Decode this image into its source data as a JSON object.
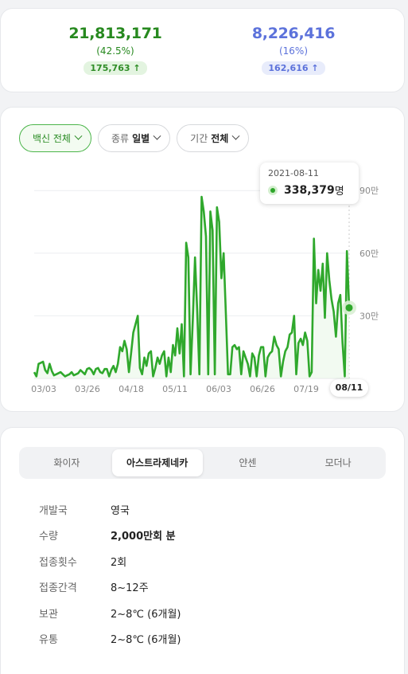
{
  "stats": {
    "first": {
      "value": "21,813,171",
      "percent": "(42.5%)",
      "change": "175,763",
      "arrow": "arrow-up-icon"
    },
    "second": {
      "value": "8,226,416",
      "percent": "(16%)",
      "change": "162,616",
      "arrow": "arrow-up-icon"
    }
  },
  "filters": [
    {
      "label": "백신 전체",
      "value": "",
      "active": true
    },
    {
      "label": "종류",
      "value": "일별",
      "active": false
    },
    {
      "label": "기간",
      "value": "전체",
      "active": false
    }
  ],
  "tooltip": {
    "date": "2021-08-11",
    "value": "338,379",
    "unit": "명"
  },
  "end_label": "08/11",
  "colors": {
    "line": "#2fa82c",
    "accent_green": "#27891f",
    "accent_blue": "#5c72db"
  },
  "chart_data": {
    "type": "line",
    "x_tick_labels": [
      "03/03",
      "03/26",
      "04/18",
      "05/11",
      "06/03",
      "06/26",
      "07/19"
    ],
    "y_tick_labels": [
      "30만",
      "60만",
      "90만"
    ],
    "y_ticks": [
      300000,
      600000,
      900000
    ],
    "ylim": [
      0,
      1000000
    ],
    "x_start": "2021-03-03",
    "x_end": "2021-08-11",
    "values": [
      30000,
      10000,
      70000,
      75000,
      80000,
      40000,
      25000,
      70000,
      35000,
      15000,
      20000,
      25000,
      30000,
      20000,
      10000,
      15000,
      20000,
      30000,
      15000,
      20000,
      25000,
      40000,
      30000,
      20000,
      45000,
      50000,
      40000,
      20000,
      45000,
      50000,
      30000,
      25000,
      45000,
      45000,
      10000,
      40000,
      60000,
      30000,
      70000,
      150000,
      130000,
      180000,
      140000,
      30000,
      120000,
      220000,
      260000,
      300000,
      50000,
      20000,
      100000,
      60000,
      120000,
      130000,
      10000,
      50000,
      100000,
      70000,
      110000,
      130000,
      10000,
      100000,
      30000,
      160000,
      110000,
      240000,
      120000,
      260000,
      10000,
      650000,
      580000,
      20000,
      280000,
      580000,
      330000,
      20000,
      870000,
      800000,
      680000,
      20000,
      800000,
      710000,
      20000,
      820000,
      750000,
      480000,
      600000,
      320000,
      20000,
      20000,
      150000,
      160000,
      140000,
      150000,
      20000,
      130000,
      100000,
      70000,
      10000,
      120000,
      100000,
      10000,
      110000,
      150000,
      150000,
      10000,
      100000,
      120000,
      130000,
      200000,
      160000,
      140000,
      10000,
      80000,
      130000,
      150000,
      210000,
      220000,
      300000,
      20000,
      170000,
      190000,
      160000,
      220000,
      180000,
      10000,
      30000,
      670000,
      360000,
      520000,
      420000,
      550000,
      290000,
      600000,
      470000,
      380000,
      320000,
      200000,
      360000,
      400000,
      170000,
      10000,
      610000,
      338379
    ]
  },
  "tabs": [
    {
      "label": "화이자",
      "active": false
    },
    {
      "label": "아스트라제네카",
      "active": true
    },
    {
      "label": "얀센",
      "active": false
    },
    {
      "label": "모더나",
      "active": false
    }
  ],
  "info": [
    {
      "label": "개발국",
      "value": "영국",
      "bold": false
    },
    {
      "label": "수량",
      "value": "2,000만회 분",
      "bold": true
    },
    {
      "label": "접종횟수",
      "value": "2회",
      "bold": false
    },
    {
      "label": "접종간격",
      "value": "8~12주",
      "bold": false
    },
    {
      "label": "보관",
      "value": "2~8℃ (6개월)",
      "bold": false
    },
    {
      "label": "유통",
      "value": "2~8℃ (6개월)",
      "bold": false
    }
  ]
}
